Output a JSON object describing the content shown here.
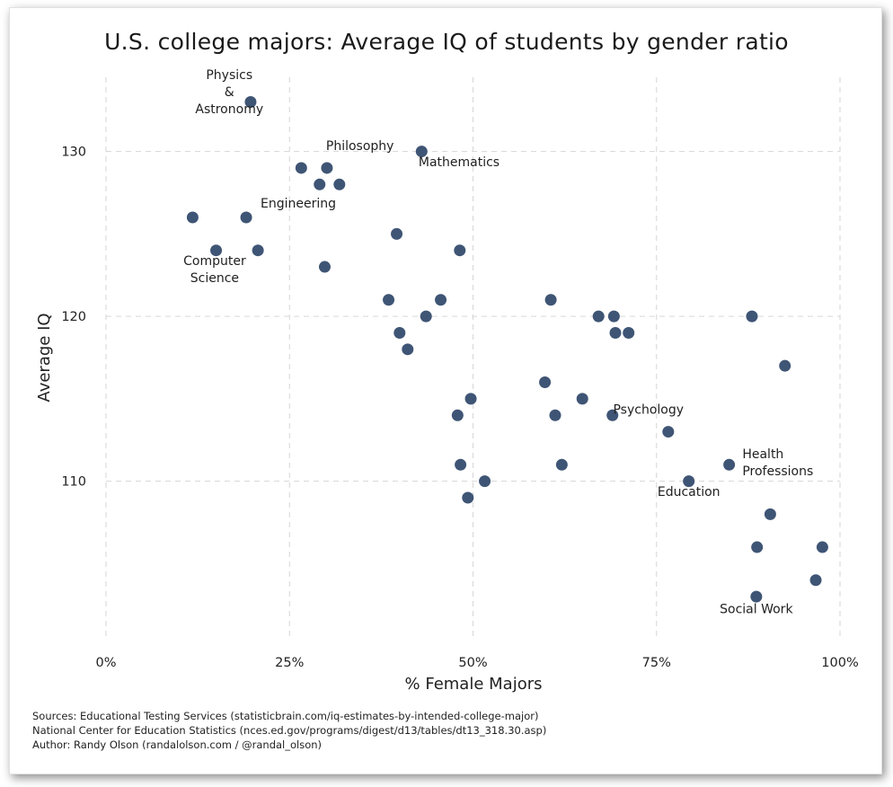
{
  "chart_data": {
    "type": "scatter",
    "title": "U.S. college majors: Average IQ of students by gender ratio",
    "xlabel": "% Female Majors",
    "ylabel": "Average IQ",
    "xlim": [
      0,
      100
    ],
    "ylim": [
      100.5,
      134.5
    ],
    "x_ticks": [
      0,
      25,
      50,
      75,
      100
    ],
    "x_tick_labels": [
      "0%",
      "25%",
      "50%",
      "75%",
      "100%"
    ],
    "y_ticks": [
      110,
      120,
      130
    ],
    "y_tick_labels": [
      "110",
      "120",
      "130"
    ],
    "grid": true,
    "marker_color": "#3f5575",
    "points": [
      {
        "x": 19.7,
        "y": 133
      },
      {
        "x": 43.0,
        "y": 130
      },
      {
        "x": 26.6,
        "y": 129
      },
      {
        "x": 30.1,
        "y": 129
      },
      {
        "x": 29.1,
        "y": 128
      },
      {
        "x": 31.8,
        "y": 128
      },
      {
        "x": 11.8,
        "y": 126
      },
      {
        "x": 19.1,
        "y": 126
      },
      {
        "x": 39.6,
        "y": 125
      },
      {
        "x": 15.0,
        "y": 124
      },
      {
        "x": 20.7,
        "y": 124
      },
      {
        "x": 48.2,
        "y": 124
      },
      {
        "x": 29.8,
        "y": 123
      },
      {
        "x": 38.5,
        "y": 121
      },
      {
        "x": 45.6,
        "y": 121
      },
      {
        "x": 60.6,
        "y": 121
      },
      {
        "x": 43.6,
        "y": 120
      },
      {
        "x": 67.1,
        "y": 120
      },
      {
        "x": 69.2,
        "y": 120
      },
      {
        "x": 88.0,
        "y": 120
      },
      {
        "x": 40.0,
        "y": 119
      },
      {
        "x": 69.4,
        "y": 119
      },
      {
        "x": 71.2,
        "y": 119
      },
      {
        "x": 41.1,
        "y": 118
      },
      {
        "x": 92.5,
        "y": 117
      },
      {
        "x": 59.8,
        "y": 116
      },
      {
        "x": 49.7,
        "y": 115
      },
      {
        "x": 64.9,
        "y": 115
      },
      {
        "x": 47.9,
        "y": 114
      },
      {
        "x": 61.2,
        "y": 114
      },
      {
        "x": 69.0,
        "y": 114
      },
      {
        "x": 76.6,
        "y": 113
      },
      {
        "x": 48.3,
        "y": 111
      },
      {
        "x": 62.1,
        "y": 111
      },
      {
        "x": 84.9,
        "y": 111
      },
      {
        "x": 51.6,
        "y": 110
      },
      {
        "x": 79.4,
        "y": 110
      },
      {
        "x": 49.3,
        "y": 109
      },
      {
        "x": 90.5,
        "y": 108
      },
      {
        "x": 88.7,
        "y": 106
      },
      {
        "x": 97.6,
        "y": 106
      },
      {
        "x": 96.7,
        "y": 104
      },
      {
        "x": 88.6,
        "y": 103
      }
    ],
    "annotations": [
      {
        "lines": [
          "Physics",
          "&",
          "Astronomy"
        ],
        "x": 16.8,
        "y": 134.4,
        "anchor": "middle"
      },
      {
        "lines": [
          "Philosophy"
        ],
        "x": 34.6,
        "y": 130.1,
        "anchor": "middle"
      },
      {
        "lines": [
          "Mathematics"
        ],
        "x": 48.1,
        "y": 129.1,
        "anchor": "middle"
      },
      {
        "lines": [
          "Engineering"
        ],
        "x": 26.2,
        "y": 126.6,
        "anchor": "middle"
      },
      {
        "lines": [
          "Computer",
          "Science"
        ],
        "x": 14.8,
        "y": 123.1,
        "anchor": "middle"
      },
      {
        "lines": [
          "Psychology"
        ],
        "x": 73.9,
        "y": 114.1,
        "anchor": "middle"
      },
      {
        "lines": [
          "Health",
          "Professions"
        ],
        "x": 86.7,
        "y": 111.4,
        "anchor": "start"
      },
      {
        "lines": [
          "Education"
        ],
        "x": 79.4,
        "y": 109.1,
        "anchor": "middle"
      },
      {
        "lines": [
          "Social Work"
        ],
        "x": 88.6,
        "y": 102.0,
        "anchor": "middle"
      }
    ]
  },
  "sources": [
    "Sources: Educational Testing Services (statisticbrain.com/iq-estimates-by-intended-college-major)",
    "National Center for Education Statistics (nces.ed.gov/programs/digest/d13/tables/dt13_318.30.asp)",
    "Author: Randy Olson (randalolson.com / @randal_olson)"
  ]
}
